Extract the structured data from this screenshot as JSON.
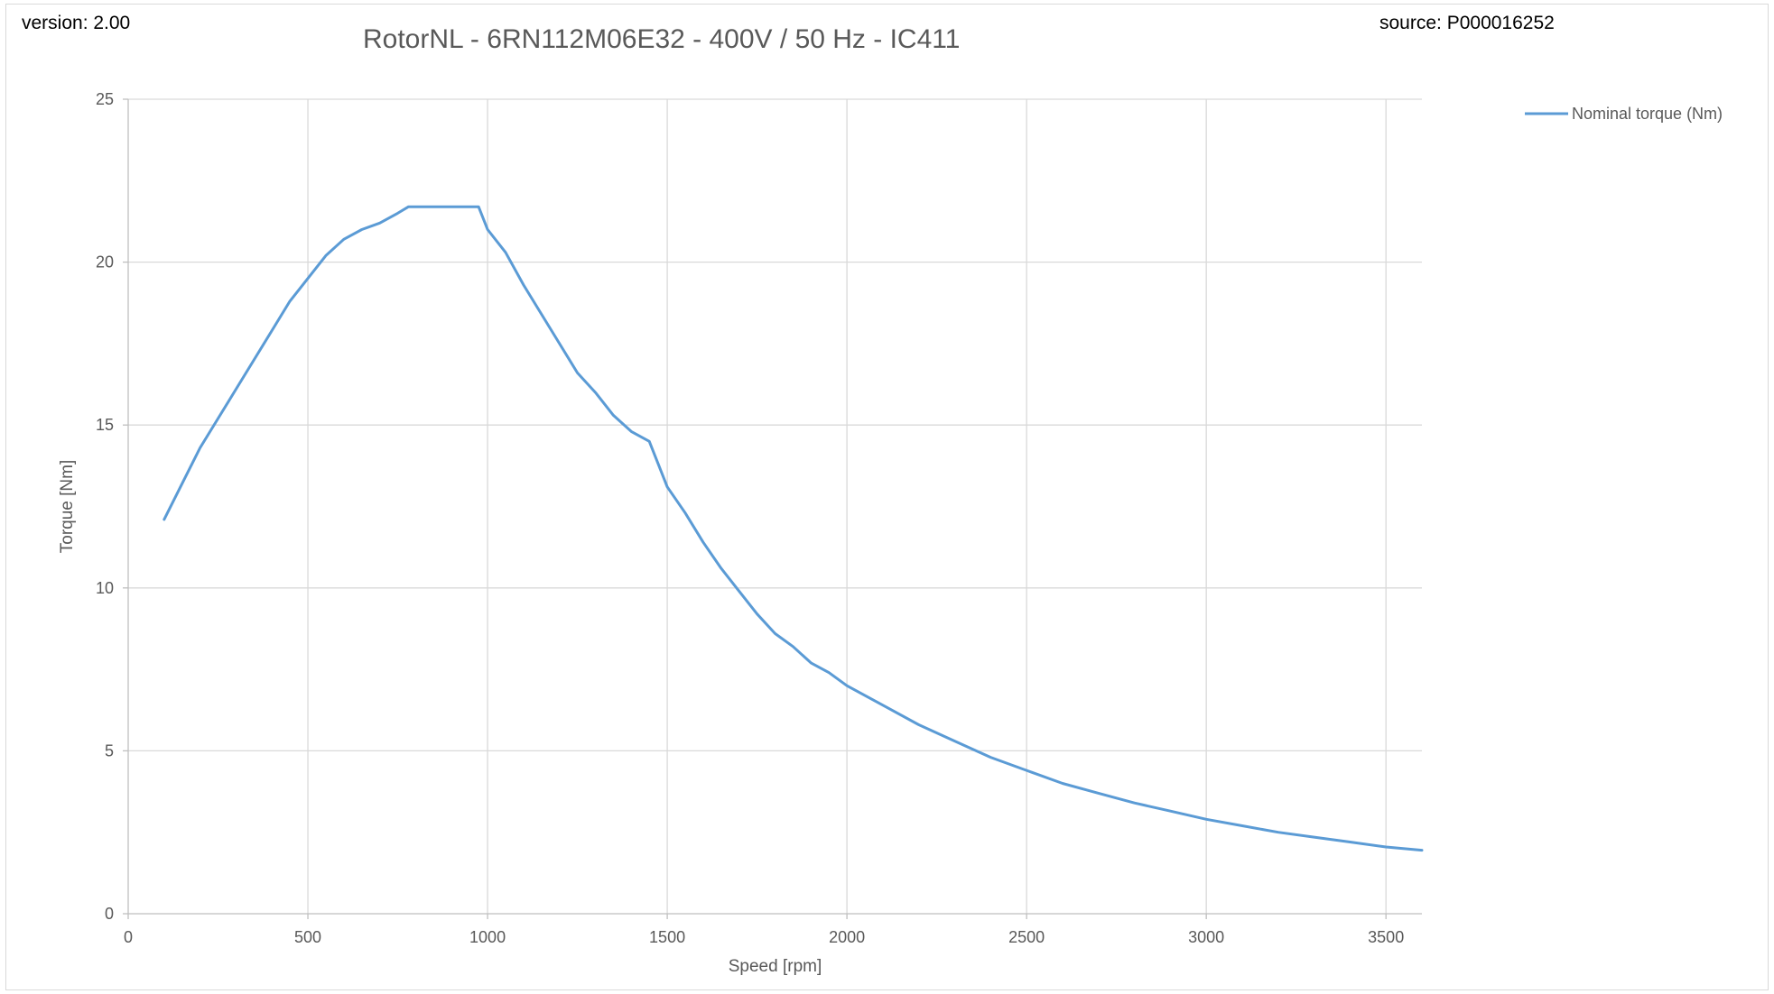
{
  "header": {
    "version": "version: 2.00",
    "source": "source: P000016252"
  },
  "chart_data": {
    "type": "line",
    "title": "RotorNL - 6RN112M06E32 - 400V / 50 Hz - IC411",
    "xlabel": "Speed  [rpm]",
    "ylabel": "Torque [Nm]",
    "xlim": [
      0,
      3600
    ],
    "ylim": [
      0,
      25
    ],
    "xticks": [
      0,
      500,
      1000,
      1500,
      2000,
      2500,
      3000,
      3500
    ],
    "yticks": [
      0,
      5,
      10,
      15,
      20,
      25
    ],
    "grid": true,
    "legend_position": "top-right",
    "series": [
      {
        "name": "Nominal torque (Nm)",
        "color": "#5b9bd5",
        "x": [
          100,
          150,
          200,
          250,
          300,
          350,
          400,
          450,
          500,
          550,
          600,
          650,
          700,
          750,
          780,
          850,
          900,
          950,
          975,
          1000,
          1050,
          1100,
          1150,
          1200,
          1250,
          1300,
          1350,
          1400,
          1450,
          1500,
          1550,
          1600,
          1650,
          1700,
          1750,
          1800,
          1850,
          1900,
          1950,
          2000,
          2100,
          2200,
          2300,
          2400,
          2500,
          2600,
          2700,
          2800,
          2900,
          3000,
          3100,
          3200,
          3300,
          3400,
          3500,
          3600
        ],
        "y": [
          12.1,
          13.2,
          14.3,
          15.2,
          16.1,
          17.0,
          17.9,
          18.8,
          19.5,
          20.2,
          20.7,
          21.0,
          21.2,
          21.5,
          21.7,
          21.7,
          21.7,
          21.7,
          21.7,
          21.0,
          20.3,
          19.3,
          18.4,
          17.5,
          16.6,
          16.0,
          15.3,
          14.8,
          14.5,
          13.1,
          12.3,
          11.4,
          10.6,
          9.9,
          9.2,
          8.6,
          8.2,
          7.7,
          7.4,
          7.0,
          6.4,
          5.8,
          5.3,
          4.8,
          4.4,
          4.0,
          3.7,
          3.4,
          3.15,
          2.9,
          2.7,
          2.5,
          2.35,
          2.2,
          2.05,
          1.95
        ]
      }
    ]
  }
}
